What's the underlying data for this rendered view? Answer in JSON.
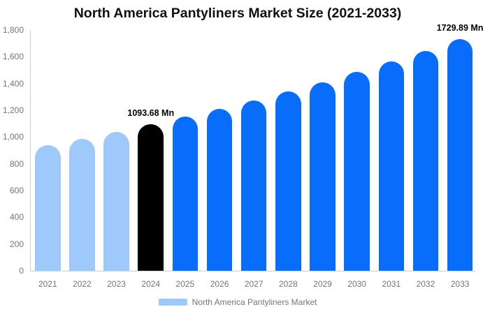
{
  "chart_data": {
    "type": "bar",
    "title": "North America Pantyliners Market Size (2021-2033)",
    "categories": [
      "2021",
      "2022",
      "2023",
      "2024",
      "2025",
      "2026",
      "2027",
      "2028",
      "2029",
      "2030",
      "2031",
      "2032",
      "2033"
    ],
    "values": [
      938.6,
      987.7,
      1039.3,
      1093.68,
      1150.9,
      1211.1,
      1274.4,
      1341.1,
      1411.2,
      1485.0,
      1562.7,
      1644.4,
      1729.89
    ],
    "color_keys": [
      "past",
      "past",
      "past",
      "current",
      "forecast",
      "forecast",
      "forecast",
      "forecast",
      "forecast",
      "forecast",
      "forecast",
      "forecast",
      "forecast"
    ],
    "colors": {
      "past": "#9fc9fa",
      "current": "#000000",
      "forecast": "#086dfa"
    },
    "annotations": [
      {
        "index": 3,
        "text": "1093.68 Mn"
      },
      {
        "index": 12,
        "text": "1729.89 Mn"
      }
    ],
    "ylim": [
      0,
      1800
    ],
    "y_ticks": [
      "0",
      "200",
      "400",
      "600",
      "800",
      "1,000",
      "1,200",
      "1,400",
      "1,600",
      "1,800"
    ],
    "y_tick_values": [
      0,
      200,
      400,
      600,
      800,
      1000,
      1200,
      1400,
      1600,
      1800
    ],
    "xlabel": "",
    "ylabel": "",
    "grid": false,
    "legend": {
      "position": "bottom",
      "entries": [
        "North America Pantyliners Market"
      ]
    },
    "axis_color": "#cfcfcf",
    "text_color": "#757575"
  },
  "legend": {
    "label": "North America Pantyliners Market"
  }
}
